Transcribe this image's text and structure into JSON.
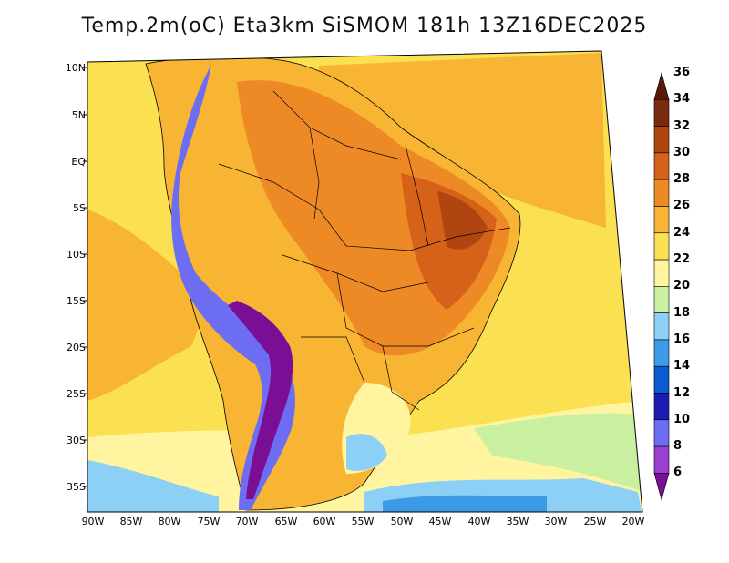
{
  "title": "Temp.2m(oC) Eta3km SiSMOM 181h 13Z16DEC2025",
  "lat_labels": [
    "10N",
    "5N",
    "EQ",
    "5S",
    "10S",
    "15S",
    "20S",
    "25S",
    "30S",
    "35S"
  ],
  "lon_labels": [
    "90W",
    "85W",
    "80W",
    "75W",
    "70W",
    "65W",
    "60W",
    "55W",
    "50W",
    "45W",
    "40W",
    "35W",
    "30W",
    "25W",
    "20W"
  ],
  "colorbar": {
    "levels": [
      "6",
      "8",
      "10",
      "12",
      "14",
      "16",
      "18",
      "20",
      "22",
      "24",
      "26",
      "28",
      "30",
      "32",
      "34",
      "36"
    ],
    "colors": [
      "#7a0f96",
      "#9b3fd0",
      "#6d6df2",
      "#1c1cb4",
      "#0a5ad2",
      "#3c9be8",
      "#8cd0f5",
      "#c9f0a0",
      "#fff5a0",
      "#fbe052",
      "#f7b533",
      "#ee8a26",
      "#d6621a",
      "#b14512",
      "#7a2a0d",
      "#5a1a08"
    ]
  }
}
